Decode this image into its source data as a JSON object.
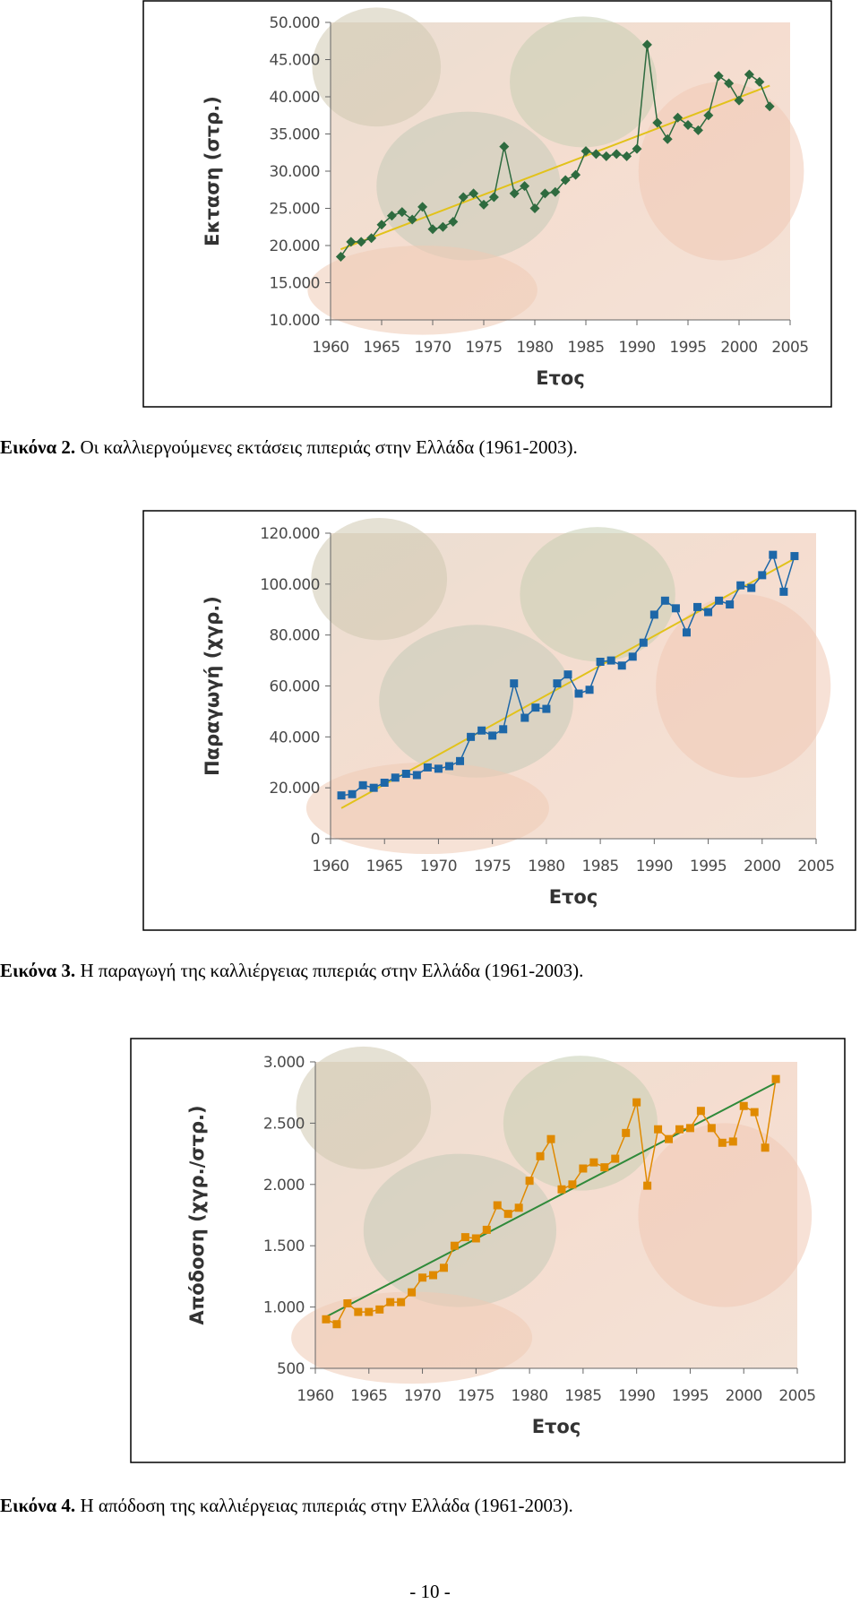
{
  "chart_data": [
    {
      "type": "line",
      "x_label": "Ετος",
      "y_label": "Εκταση (στρ.)",
      "color": "#2e6b3f",
      "marker": "diamond",
      "x": [
        1961,
        1962,
        1963,
        1964,
        1965,
        1966,
        1967,
        1968,
        1969,
        1970,
        1971,
        1972,
        1973,
        1974,
        1975,
        1976,
        1977,
        1978,
        1979,
        1980,
        1981,
        1982,
        1983,
        1984,
        1985,
        1986,
        1987,
        1988,
        1989,
        1990,
        1991,
        1992,
        1993,
        1994,
        1995,
        1996,
        1997,
        1998,
        1999,
        2000,
        2001,
        2002,
        2003
      ],
      "values": [
        18500,
        20500,
        20500,
        21000,
        22800,
        24000,
        24500,
        23500,
        25200,
        22200,
        22500,
        23200,
        26500,
        27000,
        25500,
        26500,
        33300,
        27000,
        28000,
        25000,
        27000,
        27200,
        28800,
        29500,
        32700,
        32300,
        32000,
        32300,
        32000,
        33000,
        47000,
        36500,
        34300,
        37200,
        36200,
        35500,
        37500,
        42800,
        41800,
        39500,
        43000,
        42000,
        38700
      ],
      "trendline": {
        "color": "#e2c21a",
        "x": [
          1961,
          2003
        ],
        "values": [
          19500,
          41500
        ]
      },
      "xlim": [
        1960,
        2005
      ],
      "xticks": [
        1960,
        1965,
        1970,
        1975,
        1980,
        1985,
        1990,
        1995,
        2000,
        2005
      ],
      "ylim": [
        10000,
        50000
      ],
      "yticks": [
        {
          "value": 10000,
          "label": "10.000"
        },
        {
          "value": 15000,
          "label": "15.000"
        },
        {
          "value": 20000,
          "label": "20.000"
        },
        {
          "value": 25000,
          "label": "25.000"
        },
        {
          "value": 30000,
          "label": "30.000"
        },
        {
          "value": 35000,
          "label": "35.000"
        },
        {
          "value": 40000,
          "label": "40.000"
        },
        {
          "value": 45000,
          "label": "45.000"
        },
        {
          "value": 50000,
          "label": "50.000"
        }
      ]
    },
    {
      "type": "line",
      "x_label": "Ετος",
      "y_label": "Παραγωγή (χγρ.)",
      "color": "#1d67a8",
      "marker": "square",
      "x": [
        1961,
        1962,
        1963,
        1964,
        1965,
        1966,
        1967,
        1968,
        1969,
        1970,
        1971,
        1972,
        1973,
        1974,
        1975,
        1976,
        1977,
        1978,
        1979,
        1980,
        1981,
        1982,
        1983,
        1984,
        1985,
        1986,
        1987,
        1988,
        1989,
        1990,
        1991,
        1992,
        1993,
        1994,
        1995,
        1996,
        1997,
        1998,
        1999,
        2000,
        2001,
        2002,
        2003
      ],
      "values": [
        17000,
        17500,
        21000,
        20000,
        22000,
        24000,
        25500,
        25000,
        28000,
        27500,
        28500,
        30500,
        40000,
        42500,
        40500,
        43000,
        61000,
        47500,
        51500,
        51000,
        61000,
        64500,
        57000,
        58500,
        69500,
        70000,
        68000,
        71500,
        77000,
        88000,
        93500,
        90500,
        81000,
        91000,
        89000,
        93500,
        92000,
        99500,
        98500,
        103500,
        111500,
        97000,
        111000
      ],
      "trendline": {
        "color": "#e2c21a",
        "x": [
          1961,
          2003
        ],
        "values": [
          12000,
          110000
        ]
      },
      "xlim": [
        1960,
        2005
      ],
      "xticks": [
        1960,
        1965,
        1970,
        1975,
        1980,
        1985,
        1990,
        1995,
        2000,
        2005
      ],
      "ylim": [
        0,
        120000
      ],
      "yticks": [
        0,
        {
          "value": 20000,
          "label": "20.000"
        },
        {
          "value": 40000,
          "label": "40.000"
        },
        {
          "value": 60000,
          "label": "60.000"
        },
        {
          "value": 80000,
          "label": "80.000"
        },
        {
          "value": 100000,
          "label": "100.000"
        },
        {
          "value": 120000,
          "label": "120.000"
        }
      ]
    },
    {
      "type": "line",
      "x_label": "Ετος",
      "y_label": "Απόδοση (χγρ./στρ.)",
      "color": "#e08a00",
      "marker": "square",
      "x": [
        1961,
        1962,
        1963,
        1964,
        1965,
        1966,
        1967,
        1968,
        1969,
        1970,
        1971,
        1972,
        1973,
        1974,
        1975,
        1976,
        1977,
        1978,
        1979,
        1980,
        1981,
        1982,
        1983,
        1984,
        1985,
        1986,
        1987,
        1988,
        1989,
        1990,
        1991,
        1992,
        1993,
        1994,
        1995,
        1996,
        1997,
        1998,
        1999,
        2000,
        2001,
        2002,
        2003
      ],
      "values": [
        900,
        860,
        1030,
        960,
        960,
        980,
        1040,
        1040,
        1120,
        1240,
        1260,
        1320,
        1500,
        1570,
        1560,
        1630,
        1830,
        1760,
        1810,
        2030,
        2230,
        2370,
        1960,
        2000,
        2130,
        2180,
        2140,
        2210,
        2420,
        2670,
        1990,
        2450,
        2370,
        2450,
        2460,
        2600,
        2460,
        2340,
        2350,
        2640,
        2590,
        2300,
        2860
      ],
      "trendline": {
        "color": "#2f8a3a",
        "x": [
          1961,
          2003
        ],
        "values": [
          920,
          2830
        ]
      },
      "xlim": [
        1960,
        2005
      ],
      "xticks": [
        1960,
        1965,
        1970,
        1975,
        1980,
        1985,
        1990,
        1995,
        2000,
        2005
      ],
      "ylim": [
        500,
        3000
      ],
      "yticks": [
        500,
        {
          "value": 1000,
          "label": "1.000"
        },
        {
          "value": 1500,
          "label": "1.500"
        },
        {
          "value": 2000,
          "label": "2.000"
        },
        {
          "value": 2500,
          "label": "2.500"
        },
        {
          "value": 3000,
          "label": "3.000"
        }
      ]
    }
  ],
  "captions": [
    {
      "label": "Εικόνα 2.",
      "text": "Οι καλλιεργούμενες εκτάσεις πιπεριάς στην Ελλάδα (1961-2003)."
    },
    {
      "label": "Εικόνα 3.",
      "text": "Η παραγωγή της καλλιέργειας πιπεριάς στην Ελλάδα (1961-2003)."
    },
    {
      "label": "Εικόνα 4.",
      "text": "Η απόδοση της καλλιέργειας πιπεριάς στην Ελλάδα (1961-2003)."
    }
  ],
  "page_number": "- 10 -"
}
